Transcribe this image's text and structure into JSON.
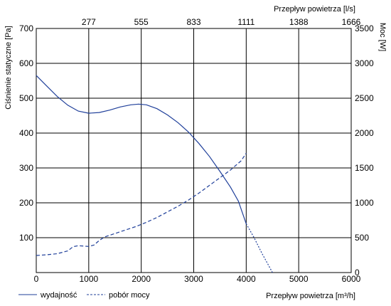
{
  "chart_data": {
    "type": "line",
    "x_bottom": {
      "label": "Przepływ powietrza [m³/h]",
      "range": [
        0,
        6000
      ],
      "ticks": [
        0,
        1000,
        2000,
        3000,
        4000,
        5000,
        6000
      ]
    },
    "x_top": {
      "label": "Przepływ powietrza [l/s]",
      "tick_labels": [
        "277",
        "555",
        "833",
        "1111",
        "1388",
        "1666"
      ]
    },
    "y_left": {
      "label": "Ciśnienie statyczne [Pa]",
      "range": [
        0,
        700
      ],
      "ticks": [
        100,
        200,
        300,
        400,
        500,
        600,
        700
      ]
    },
    "y_right": {
      "label": "Moc [W]",
      "range": [
        0,
        3500
      ],
      "ticks": [
        0,
        500,
        1000,
        1500,
        2000,
        2500,
        3000,
        3500
      ]
    },
    "grid": true,
    "legend_position": "bottom-left",
    "series": [
      {
        "name": "wydajność",
        "axis": "left",
        "style": "solid",
        "color": "#1f3f9a",
        "points": [
          [
            0,
            565
          ],
          [
            200,
            535
          ],
          [
            400,
            505
          ],
          [
            600,
            480
          ],
          [
            800,
            463
          ],
          [
            1000,
            457
          ],
          [
            1200,
            459
          ],
          [
            1400,
            466
          ],
          [
            1600,
            475
          ],
          [
            1800,
            481
          ],
          [
            1950,
            483
          ],
          [
            2100,
            481
          ],
          [
            2300,
            470
          ],
          [
            2500,
            452
          ],
          [
            2700,
            430
          ],
          [
            2900,
            403
          ],
          [
            3100,
            370
          ],
          [
            3300,
            333
          ],
          [
            3500,
            290
          ],
          [
            3700,
            245
          ],
          [
            3850,
            205
          ],
          [
            4000,
            140
          ]
        ]
      },
      {
        "name": "wydajność",
        "axis": "left",
        "style": "dotted",
        "color": "#1f3f9a",
        "points": [
          [
            4000,
            140
          ],
          [
            4150,
            100
          ],
          [
            4300,
            55
          ],
          [
            4500,
            0
          ]
        ]
      },
      {
        "name": "pobór mocy",
        "axis": "right",
        "style": "dashed",
        "color": "#1f3f9a",
        "points": [
          [
            0,
            245
          ],
          [
            200,
            255
          ],
          [
            400,
            270
          ],
          [
            600,
            310
          ],
          [
            700,
            370
          ],
          [
            800,
            385
          ],
          [
            1000,
            375
          ],
          [
            1100,
            395
          ],
          [
            1200,
            460
          ],
          [
            1300,
            510
          ],
          [
            1500,
            560
          ],
          [
            1700,
            610
          ],
          [
            1900,
            660
          ],
          [
            2100,
            720
          ],
          [
            2300,
            790
          ],
          [
            2500,
            870
          ],
          [
            2700,
            950
          ],
          [
            2900,
            1040
          ],
          [
            3100,
            1140
          ],
          [
            3300,
            1250
          ],
          [
            3500,
            1360
          ],
          [
            3700,
            1470
          ],
          [
            3900,
            1600
          ],
          [
            4000,
            1710
          ]
        ]
      }
    ],
    "legend": [
      {
        "label": "wydajność",
        "style": "solid"
      },
      {
        "label": "pobór mocy",
        "style": "dashed"
      }
    ]
  }
}
